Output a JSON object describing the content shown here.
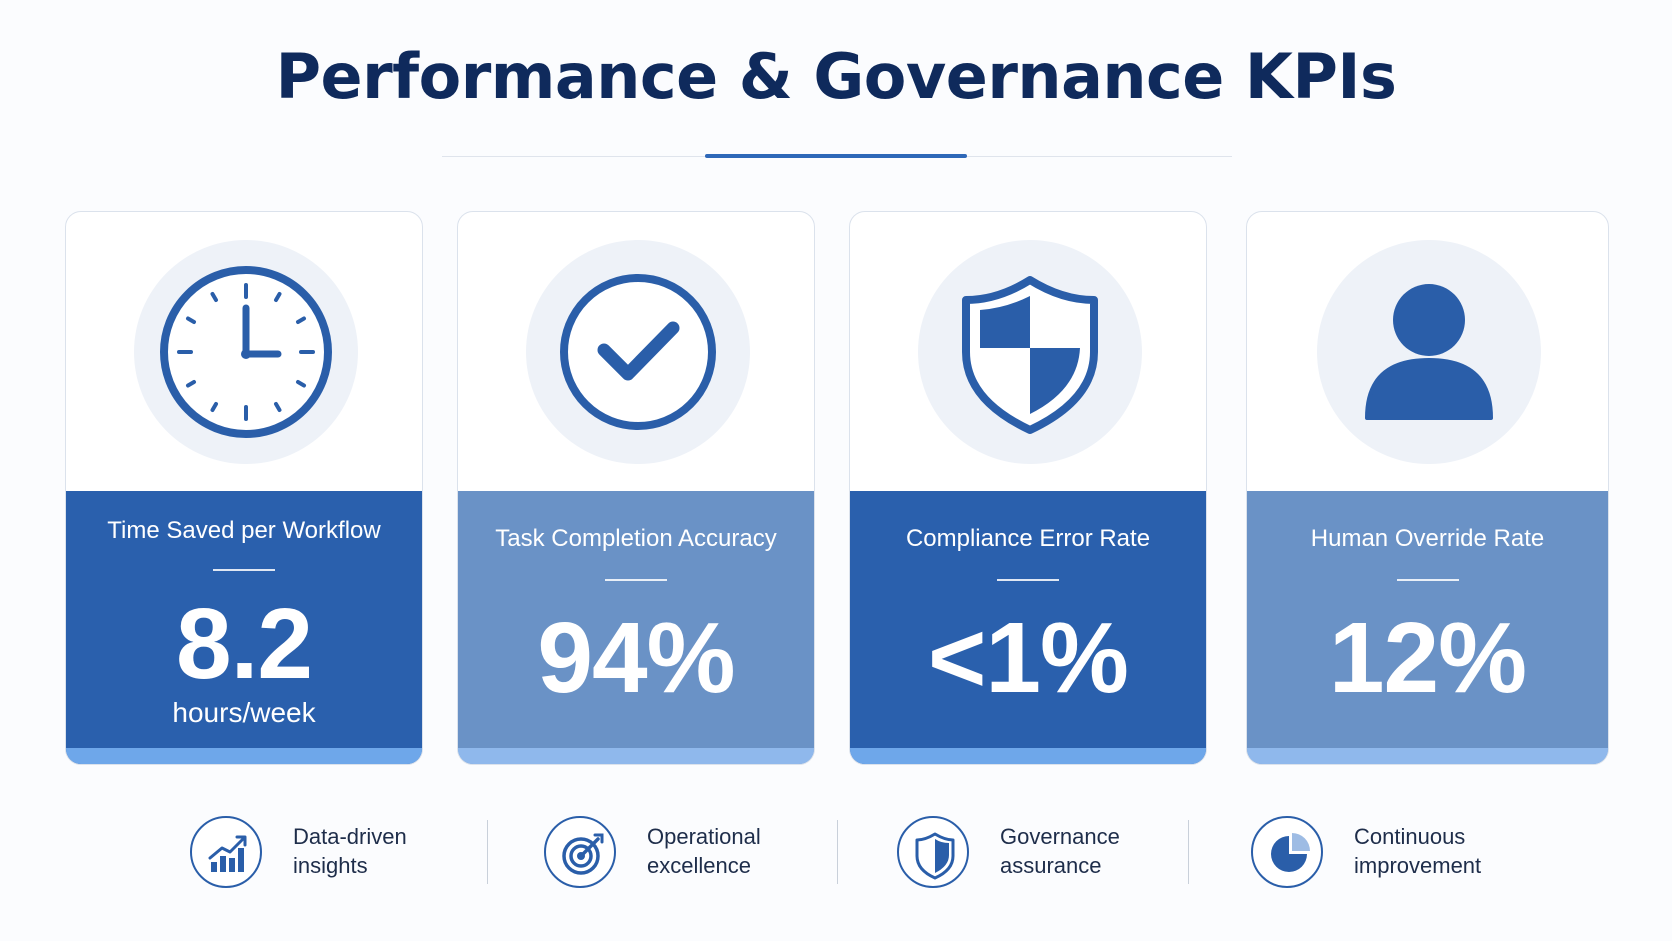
{
  "title": "Performance & Governance KPIs",
  "colors": {
    "title": "#0f2a5c",
    "accent": "#2e68b8",
    "panel_dark": "#2a60ad",
    "panel_light": "#6a92c6",
    "panel_bar_dark": "#6ea7ea",
    "panel_bar_light": "#8fb8ec",
    "icon_bg": "#eef2f8"
  },
  "kpis": [
    {
      "icon": "clock-icon",
      "label": "Time Saved per Workflow",
      "value": "8.2",
      "unit": "hours/week",
      "style": "dark"
    },
    {
      "icon": "check-circle-icon",
      "label": "Task Completion Accuracy",
      "value": "94%",
      "unit": "",
      "style": "light"
    },
    {
      "icon": "shield-icon",
      "label": "Compliance Error Rate",
      "value": "<1%",
      "unit": "",
      "style": "dark"
    },
    {
      "icon": "user-icon",
      "label": "Human Override Rate",
      "value": "12%",
      "unit": "",
      "style": "light"
    }
  ],
  "features": [
    {
      "icon": "chart-growth-icon",
      "line1": "Data-driven",
      "line2": "insights"
    },
    {
      "icon": "target-icon",
      "line1": "Operational",
      "line2": "excellence"
    },
    {
      "icon": "shield-icon",
      "line1": "Governance",
      "line2": "assurance"
    },
    {
      "icon": "pie-chart-icon",
      "line1": "Continuous",
      "line2": "improvement"
    }
  ]
}
